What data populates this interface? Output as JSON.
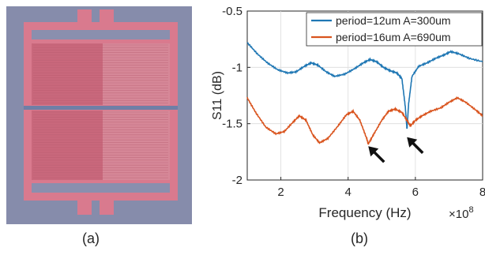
{
  "panel_a": {
    "label": "(a)",
    "colors": {
      "background": "#7f86a6",
      "device_pink": "#d97a8e",
      "electrode_dark": "#c6687b",
      "electrode_light": "#e0a3ae"
    }
  },
  "panel_b": {
    "label": "(b)"
  },
  "chart_data": {
    "type": "line",
    "title": "",
    "xlabel": "Frequency (Hz)",
    "xscale_label": "×10",
    "xscale_exponent": "8",
    "ylabel": "S11 (dB)",
    "xlim": [
      1,
      8
    ],
    "ylim": [
      -2,
      -0.5
    ],
    "xticks": [
      2,
      4,
      6,
      8
    ],
    "xtick_labels": [
      "2",
      "4",
      "6",
      "8"
    ],
    "yticks": [
      -2,
      -1.5,
      -1,
      -0.5
    ],
    "ytick_labels": [
      "-2",
      "-1.5",
      "-1",
      "-0.5"
    ],
    "grid": true,
    "legend_position": "top-right",
    "series": [
      {
        "name": "period=12um A=300um",
        "color": "#1f77b4",
        "points": [
          [
            1.0,
            -0.78
          ],
          [
            1.3,
            -0.88
          ],
          [
            1.6,
            -0.96
          ],
          [
            1.9,
            -1.02
          ],
          [
            2.2,
            -1.05
          ],
          [
            2.45,
            -1.04
          ],
          [
            2.7,
            -0.99
          ],
          [
            2.9,
            -0.96
          ],
          [
            3.1,
            -0.98
          ],
          [
            3.35,
            -1.04
          ],
          [
            3.6,
            -1.08
          ],
          [
            3.9,
            -1.06
          ],
          [
            4.2,
            -1.01
          ],
          [
            4.45,
            -0.96
          ],
          [
            4.65,
            -0.93
          ],
          [
            4.85,
            -0.95
          ],
          [
            5.05,
            -1.0
          ],
          [
            5.25,
            -1.03
          ],
          [
            5.45,
            -1.05
          ],
          [
            5.6,
            -1.1
          ],
          [
            5.7,
            -1.35
          ],
          [
            5.75,
            -1.55
          ],
          [
            5.8,
            -1.32
          ],
          [
            5.9,
            -1.08
          ],
          [
            6.1,
            -0.99
          ],
          [
            6.35,
            -0.96
          ],
          [
            6.6,
            -0.92
          ],
          [
            6.85,
            -0.89
          ],
          [
            7.05,
            -0.86
          ],
          [
            7.3,
            -0.88
          ],
          [
            7.6,
            -0.92
          ],
          [
            8.0,
            -0.95
          ]
        ]
      },
      {
        "name": "period=16um A=690um",
        "color": "#d9541e",
        "points": [
          [
            1.0,
            -1.27
          ],
          [
            1.25,
            -1.4
          ],
          [
            1.55,
            -1.53
          ],
          [
            1.85,
            -1.59
          ],
          [
            2.1,
            -1.57
          ],
          [
            2.35,
            -1.49
          ],
          [
            2.55,
            -1.43
          ],
          [
            2.75,
            -1.47
          ],
          [
            2.95,
            -1.6
          ],
          [
            3.15,
            -1.67
          ],
          [
            3.4,
            -1.63
          ],
          [
            3.7,
            -1.52
          ],
          [
            3.95,
            -1.42
          ],
          [
            4.15,
            -1.39
          ],
          [
            4.35,
            -1.47
          ],
          [
            4.55,
            -1.63
          ],
          [
            4.6,
            -1.68
          ],
          [
            4.75,
            -1.6
          ],
          [
            5.0,
            -1.47
          ],
          [
            5.2,
            -1.39
          ],
          [
            5.4,
            -1.37
          ],
          [
            5.6,
            -1.4
          ],
          [
            5.75,
            -1.47
          ],
          [
            5.85,
            -1.52
          ],
          [
            6.0,
            -1.47
          ],
          [
            6.2,
            -1.43
          ],
          [
            6.45,
            -1.39
          ],
          [
            6.75,
            -1.36
          ],
          [
            7.0,
            -1.31
          ],
          [
            7.25,
            -1.27
          ],
          [
            7.5,
            -1.31
          ],
          [
            7.8,
            -1.38
          ],
          [
            8.0,
            -1.43
          ]
        ]
      }
    ],
    "annotations": [
      {
        "type": "arrow",
        "target": [
          4.6,
          -1.7
        ],
        "label": ""
      },
      {
        "type": "arrow",
        "target": [
          5.75,
          -1.62
        ],
        "label": ""
      }
    ]
  }
}
